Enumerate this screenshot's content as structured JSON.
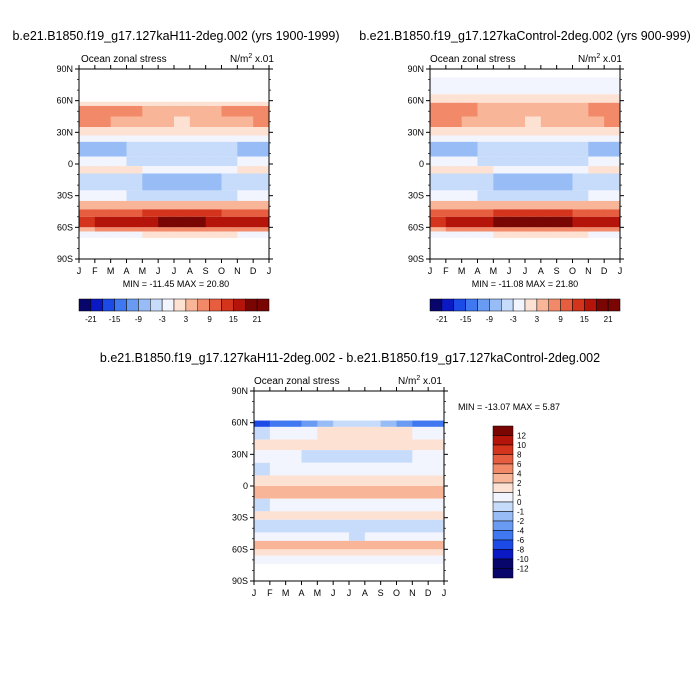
{
  "chart_data": [
    {
      "type": "heatmap",
      "title": "b.e21.B1850.f19_g17.127kaH11-2deg.002 (yrs 1900-1999)",
      "subtitle_left": "Ocean zonal stress",
      "units_prefix": "N/m",
      "units_exp": "2",
      "units_suffix": " x.01",
      "x_ticks": [
        "J",
        "F",
        "M",
        "A",
        "M",
        "J",
        "J",
        "A",
        "S",
        "O",
        "N",
        "D",
        "J"
      ],
      "y_ticks": [
        "90N",
        "60N",
        "30N",
        "0",
        "30S",
        "60S",
        "90S"
      ],
      "ylim": [
        -90,
        90
      ],
      "minmax": "MIN = -11.45  MAX =  20.80",
      "colorbar_levels": [
        -21,
        -18,
        -15,
        -12,
        -9,
        -6,
        -3,
        0,
        3,
        6,
        9,
        12,
        15,
        18,
        21
      ],
      "colorbar_labels": [
        "-21",
        "-15",
        "-9",
        "-3",
        "3",
        "9",
        "15",
        "21"
      ],
      "bands": [
        {
          "lat_top": 59,
          "lat_bottom": 55,
          "jan": 3,
          "jul": 2
        },
        {
          "lat_top": 55,
          "lat_bottom": 45,
          "jan": 9,
          "jul": 5
        },
        {
          "lat_top": 45,
          "lat_bottom": 35,
          "jan": 7,
          "jul": 3
        },
        {
          "lat_top": 35,
          "lat_bottom": 27,
          "jan": 2,
          "jul": 1
        },
        {
          "lat_top": 27,
          "lat_bottom": 21,
          "jan": -2,
          "jul": -1
        },
        {
          "lat_top": 21,
          "lat_bottom": 7,
          "jan": -7,
          "jul": -3
        },
        {
          "lat_top": 7,
          "lat_bottom": -2,
          "jan": -2,
          "jul": -4
        },
        {
          "lat_top": -2,
          "lat_bottom": -9,
          "jan": 1,
          "jul": -1
        },
        {
          "lat_top": -9,
          "lat_bottom": -25,
          "jan": -3,
          "jul": -7
        },
        {
          "lat_top": -25,
          "lat_bottom": -35,
          "jan": -2,
          "jul": -4
        },
        {
          "lat_top": -35,
          "lat_bottom": -43,
          "jan": 4,
          "jul": 6
        },
        {
          "lat_top": -43,
          "lat_bottom": -50,
          "jan": 10,
          "jul": 13
        },
        {
          "lat_top": -50,
          "lat_bottom": -60,
          "jan": 15,
          "jul": 19
        },
        {
          "lat_top": -60,
          "lat_bottom": -64,
          "jan": 6,
          "jul": 8
        },
        {
          "lat_top": -64,
          "lat_bottom": -70,
          "jan": -1,
          "jul": 1
        }
      ]
    },
    {
      "type": "heatmap",
      "title": "b.e21.B1850.f19_g17.127kaControl-2deg.002 (yrs 900-999)",
      "subtitle_left": "Ocean zonal stress",
      "units_prefix": "N/m",
      "units_exp": "2",
      "units_suffix": " x.01",
      "x_ticks": [
        "J",
        "F",
        "M",
        "A",
        "M",
        "J",
        "J",
        "A",
        "S",
        "O",
        "N",
        "D",
        "J"
      ],
      "y_ticks": [
        "90N",
        "60N",
        "30N",
        "0",
        "30S",
        "60S",
        "90S"
      ],
      "ylim": [
        -90,
        90
      ],
      "minmax": "MIN = -11.08  MAX =  21.80",
      "colorbar_levels": [
        -21,
        -18,
        -15,
        -12,
        -9,
        -6,
        -3,
        0,
        3,
        6,
        9,
        12,
        15,
        18,
        21
      ],
      "colorbar_labels": [
        "-21",
        "-15",
        "-9",
        "-3",
        "3",
        "9",
        "15",
        "21"
      ],
      "bands": [
        {
          "lat_top": 82,
          "lat_bottom": 66,
          "jan": -1,
          "jul": -1
        },
        {
          "lat_top": 66,
          "lat_bottom": 58,
          "jan": 1,
          "jul": 1
        },
        {
          "lat_top": 58,
          "lat_bottom": 45,
          "jan": 8,
          "jul": 4
        },
        {
          "lat_top": 45,
          "lat_bottom": 35,
          "jan": 7,
          "jul": 3
        },
        {
          "lat_top": 35,
          "lat_bottom": 27,
          "jan": 2,
          "jul": 1
        },
        {
          "lat_top": 27,
          "lat_bottom": 21,
          "jan": -2,
          "jul": -1
        },
        {
          "lat_top": 21,
          "lat_bottom": 7,
          "jan": -7,
          "jul": -3
        },
        {
          "lat_top": 7,
          "lat_bottom": -2,
          "jan": -2,
          "jul": -4
        },
        {
          "lat_top": -2,
          "lat_bottom": -9,
          "jan": 1,
          "jul": -1
        },
        {
          "lat_top": -9,
          "lat_bottom": -25,
          "jan": -3,
          "jul": -8
        },
        {
          "lat_top": -25,
          "lat_bottom": -35,
          "jan": -2,
          "jul": -4
        },
        {
          "lat_top": -35,
          "lat_bottom": -43,
          "jan": 4,
          "jul": 6
        },
        {
          "lat_top": -43,
          "lat_bottom": -50,
          "jan": 10,
          "jul": 14
        },
        {
          "lat_top": -50,
          "lat_bottom": -60,
          "jan": 15,
          "jul": 20
        },
        {
          "lat_top": -60,
          "lat_bottom": -64,
          "jan": 6,
          "jul": 8
        },
        {
          "lat_top": -64,
          "lat_bottom": -70,
          "jan": -1,
          "jul": 1
        }
      ]
    },
    {
      "type": "heatmap",
      "title": "b.e21.B1850.f19_g17.127kaH11-2deg.002 - b.e21.B1850.f19_g17.127kaControl-2deg.002",
      "subtitle_left": "Ocean zonal stress",
      "units_prefix": "N/m",
      "units_exp": "2",
      "units_suffix": " x.01",
      "x_ticks": [
        "J",
        "F",
        "M",
        "A",
        "M",
        "J",
        "J",
        "A",
        "S",
        "O",
        "N",
        "D",
        "J"
      ],
      "y_ticks": [
        "90N",
        "60N",
        "30N",
        "0",
        "30S",
        "60S",
        "90S"
      ],
      "ylim": [
        -90,
        90
      ],
      "minmax": "MIN = -13.07 MAX =  5.87",
      "colorbar_levels": [
        -12,
        -10,
        -8,
        -6,
        -4,
        -2,
        -1,
        0,
        1,
        2,
        4,
        6,
        8,
        10,
        12
      ],
      "colorbar_labels": [
        "12",
        "10",
        "8",
        "6",
        "4",
        "2",
        "1",
        "0",
        "-1",
        "-2",
        "-4",
        "-6",
        "-8",
        "-10",
        "-12"
      ],
      "bands": [
        {
          "lat_top": 62,
          "lat_bottom": 56,
          "jan": -8,
          "jul": -1
        },
        {
          "lat_top": 56,
          "lat_bottom": 44,
          "jan": -1,
          "jul": 1
        },
        {
          "lat_top": 44,
          "lat_bottom": 34,
          "jan": 1,
          "jul": 0.5
        },
        {
          "lat_top": 34,
          "lat_bottom": 22,
          "jan": -0.5,
          "jul": -1.5
        },
        {
          "lat_top": 22,
          "lat_bottom": 10,
          "jan": -1,
          "jul": -0.5
        },
        {
          "lat_top": 10,
          "lat_bottom": 0,
          "jan": 0.5,
          "jul": 0.5
        },
        {
          "lat_top": 0,
          "lat_bottom": -12,
          "jan": 2,
          "jul": 1.5
        },
        {
          "lat_top": -12,
          "lat_bottom": -24,
          "jan": -1,
          "jul": -0.5
        },
        {
          "lat_top": -24,
          "lat_bottom": -32,
          "jan": 0.5,
          "jul": 0.5
        },
        {
          "lat_top": -32,
          "lat_bottom": -44,
          "jan": -1.5,
          "jul": -1
        },
        {
          "lat_top": -44,
          "lat_bottom": -52,
          "jan": -0.5,
          "jul": -1
        },
        {
          "lat_top": -52,
          "lat_bottom": -60,
          "jan": 1.5,
          "jul": 1.5
        },
        {
          "lat_top": -60,
          "lat_bottom": -66,
          "jan": 0.5,
          "jul": 0.5
        },
        {
          "lat_top": -66,
          "lat_bottom": -74,
          "jan": -0.5,
          "jul": -0.5
        }
      ]
    }
  ],
  "colors": {
    "palette": [
      "#08066b",
      "#0a19c4",
      "#1c4ae6",
      "#3f78f0",
      "#6a9bf3",
      "#97bcf6",
      "#c7dbfa",
      "#f2f4fe",
      "#fde1d3",
      "#f8b598",
      "#f28a6a",
      "#e75d3f",
      "#d3341b",
      "#b5140a",
      "#7a0604"
    ]
  }
}
